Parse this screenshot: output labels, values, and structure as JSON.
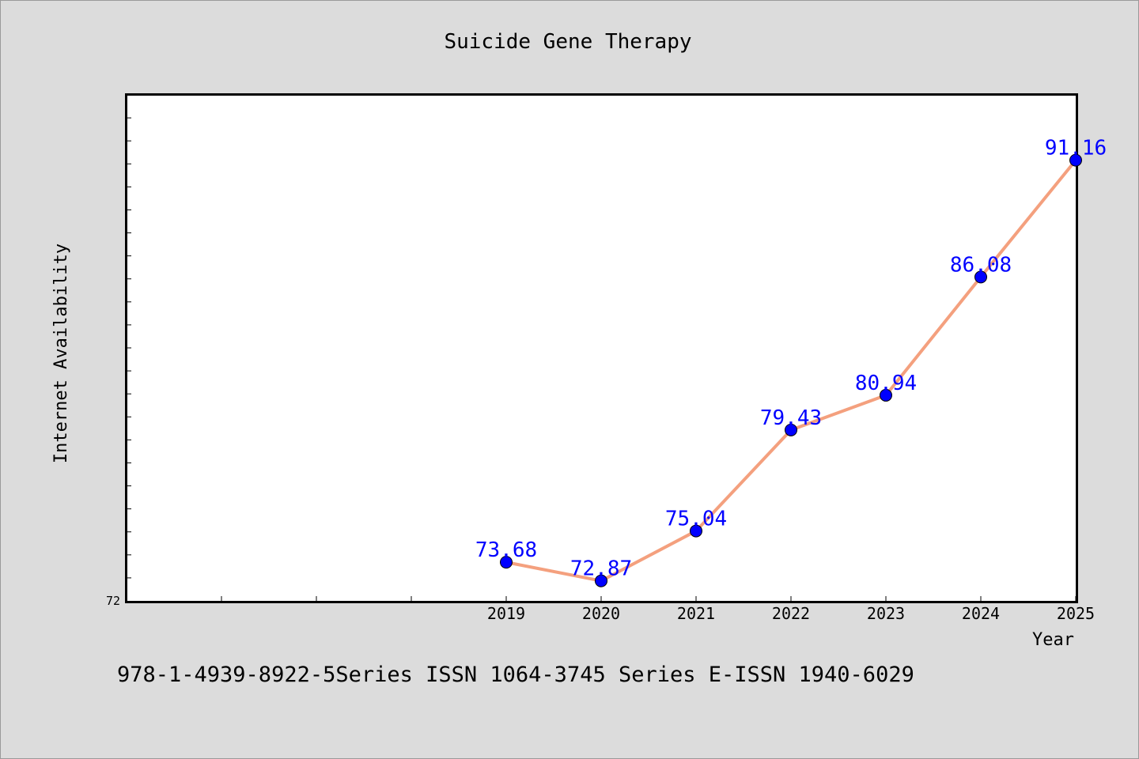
{
  "chart_data": {
    "type": "line",
    "title": "Suicide Gene Therapy",
    "xlabel": "Year",
    "ylabel": "Internet Availability",
    "x": [
      "2019",
      "2020",
      "2021",
      "2022",
      "2023",
      "2024",
      "2025"
    ],
    "values": [
      73.68,
      72.87,
      75.04,
      79.43,
      80.94,
      86.08,
      91.16
    ],
    "data_labels": [
      "73.68",
      "72.87",
      "75.04",
      "79.43",
      "80.94",
      "86.08",
      "91.16"
    ],
    "ylim": [
      72,
      94
    ],
    "y_tick_labels": [
      "72"
    ],
    "grid": false,
    "legend": "none",
    "line_color": "#f4a07e",
    "marker_color": "#0000ff",
    "label_color": "#0000ff"
  },
  "footer_text": "978-1-4939-8922-5Series ISSN 1064-3745 Series E-ISSN 1940-6029"
}
